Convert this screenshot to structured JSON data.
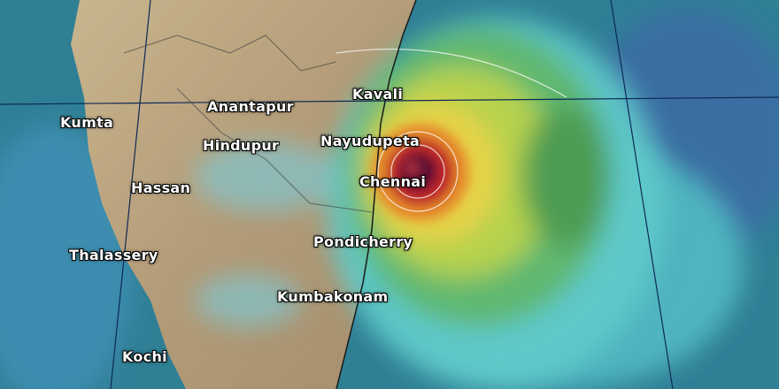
{
  "map": {
    "type": "rainfall-forecast",
    "colors": {
      "ocean": "#2f7f95",
      "land": "#b9a583",
      "light_rain": "#5fc9c9",
      "moderate_rain": "#5fb870",
      "heavy_rain": "#d9d84a",
      "very_heavy_rain": "#e58a2a",
      "extreme_rain": "#c0262a",
      "peak_rain": "#5a1030"
    },
    "cities": [
      {
        "name": "Kavali"
      },
      {
        "name": "Anantapur"
      },
      {
        "name": "Kumta"
      },
      {
        "name": "Hindupur"
      },
      {
        "name": "Nayudupeta"
      },
      {
        "name": "Chennai"
      },
      {
        "name": "Hassan"
      },
      {
        "name": "Thalassery"
      },
      {
        "name": "Pondicherry"
      },
      {
        "name": "Kumbakonam"
      },
      {
        "name": "Kochi"
      }
    ]
  }
}
